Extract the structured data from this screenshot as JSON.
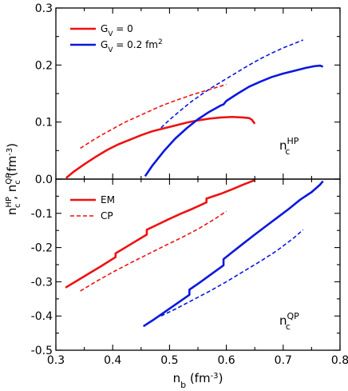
{
  "chart_data": [
    {
      "id": "top",
      "type": "line",
      "xlim": [
        0.3,
        0.8
      ],
      "ylim": [
        0,
        0.3
      ],
      "yticks": [
        "0.0",
        "0.1",
        "0.2",
        "0.3"
      ],
      "legend": {
        "placement": "top-left",
        "entries": [
          {
            "label": "G",
            "sub": "V",
            "rest": " = 0",
            "color": "#ee1111",
            "dash": "solid"
          },
          {
            "label": "G",
            "sub": "V",
            "rest": " = 0.2 fm",
            "sup": "2",
            "color": "#0a18dd",
            "dash": "solid"
          }
        ]
      },
      "annotation": {
        "base": "n",
        "sub": "c",
        "sup": "HP"
      },
      "series": [
        {
          "name": "G_V = 0, EM",
          "color": "#ee1111",
          "dash": "solid",
          "x": [
            0.318,
            0.33,
            0.35,
            0.37,
            0.39,
            0.41,
            0.43,
            0.45,
            0.47,
            0.49,
            0.51,
            0.53,
            0.55,
            0.57,
            0.59,
            0.61,
            0.63,
            0.64,
            0.645,
            0.65
          ],
          "y": [
            0.002,
            0.012,
            0.026,
            0.039,
            0.051,
            0.061,
            0.069,
            0.077,
            0.084,
            0.089,
            0.094,
            0.099,
            0.103,
            0.106,
            0.108,
            0.109,
            0.108,
            0.107,
            0.104,
            0.097
          ]
        },
        {
          "name": "G_V = 0, CP",
          "color": "#ee1111",
          "dash": "dashed",
          "x": [
            0.343,
            0.36,
            0.38,
            0.4,
            0.42,
            0.44,
            0.46,
            0.48,
            0.5,
            0.52,
            0.54,
            0.56,
            0.58,
            0.6
          ],
          "y": [
            0.054,
            0.065,
            0.077,
            0.088,
            0.099,
            0.108,
            0.117,
            0.126,
            0.134,
            0.141,
            0.148,
            0.154,
            0.16,
            0.166
          ]
        },
        {
          "name": "G_V = 0.2 fm2, EM",
          "color": "#0a18dd",
          "dash": "solid",
          "x": [
            0.457,
            0.47,
            0.49,
            0.51,
            0.53,
            0.55,
            0.57,
            0.59,
            0.595,
            0.6,
            0.62,
            0.64,
            0.66,
            0.68,
            0.7,
            0.72,
            0.74,
            0.755,
            0.765,
            0.77
          ],
          "y": [
            0.005,
            0.024,
            0.049,
            0.071,
            0.089,
            0.105,
            0.118,
            0.129,
            0.131,
            0.137,
            0.15,
            0.162,
            0.171,
            0.179,
            0.185,
            0.19,
            0.195,
            0.198,
            0.199,
            0.197
          ]
        },
        {
          "name": "G_V = 0.2 fm2, CP",
          "color": "#0a18dd",
          "dash": "dashed",
          "x": [
            0.485,
            0.5,
            0.52,
            0.54,
            0.56,
            0.58,
            0.6,
            0.62,
            0.64,
            0.66,
            0.68,
            0.7,
            0.72,
            0.735
          ],
          "y": [
            0.09,
            0.104,
            0.121,
            0.137,
            0.151,
            0.164,
            0.176,
            0.188,
            0.2,
            0.211,
            0.221,
            0.23,
            0.238,
            0.244
          ]
        }
      ]
    },
    {
      "id": "bottom",
      "type": "line",
      "xlim": [
        0.3,
        0.8
      ],
      "ylim": [
        -0.5,
        0
      ],
      "xticks": [
        "0.3",
        "0.4",
        "0.5",
        "0.6",
        "0.7",
        "0.8"
      ],
      "yticks": [
        "-0.5",
        "-0.4",
        "-0.3",
        "-0.2",
        "-0.1"
      ],
      "xlabel": {
        "base": "n",
        "sub": "b",
        "rest": " (fm",
        "sup": "-3",
        "end": ")"
      },
      "legend": {
        "placement": "top-left",
        "entries": [
          {
            "label": "EM",
            "color": "#ee1111",
            "dash": "solid"
          },
          {
            "label": "CP",
            "color": "#ee1111",
            "dash": "dashed"
          }
        ]
      },
      "annotation": {
        "base": "n",
        "sub": "c",
        "sup": "QP"
      },
      "series": [
        {
          "name": "G_V = 0, EM",
          "color": "#ee1111",
          "dash": "solid",
          "x": [
            0.317,
            0.34,
            0.36,
            0.38,
            0.405,
            0.405,
            0.43,
            0.45,
            0.46,
            0.46,
            0.48,
            0.5,
            0.52,
            0.54,
            0.565,
            0.565,
            0.59,
            0.61,
            0.63,
            0.65
          ],
          "y": [
            -0.317,
            -0.294,
            -0.274,
            -0.254,
            -0.228,
            -0.217,
            -0.192,
            -0.172,
            -0.162,
            -0.148,
            -0.132,
            -0.116,
            -0.101,
            -0.087,
            -0.068,
            -0.057,
            -0.043,
            -0.03,
            -0.016,
            -0.003
          ]
        },
        {
          "name": "G_V = 0, CP",
          "color": "#ee1111",
          "dash": "dashed",
          "x": [
            0.343,
            0.37,
            0.4,
            0.43,
            0.46,
            0.49,
            0.52,
            0.55,
            0.58,
            0.6
          ],
          "y": [
            -0.327,
            -0.3,
            -0.272,
            -0.246,
            -0.221,
            -0.196,
            -0.172,
            -0.146,
            -0.116,
            -0.094
          ]
        },
        {
          "name": "G_V = 0.2 fm2, EM",
          "color": "#0a18dd",
          "dash": "solid",
          "x": [
            0.454,
            0.47,
            0.49,
            0.51,
            0.535,
            0.535,
            0.55,
            0.57,
            0.595,
            0.595,
            0.61,
            0.63,
            0.65,
            0.67,
            0.69,
            0.71,
            0.73,
            0.75,
            0.765,
            0.77
          ],
          "y": [
            -0.43,
            -0.413,
            -0.39,
            -0.367,
            -0.338,
            -0.323,
            -0.306,
            -0.282,
            -0.252,
            -0.234,
            -0.214,
            -0.188,
            -0.162,
            -0.137,
            -0.112,
            -0.087,
            -0.06,
            -0.038,
            -0.016,
            -0.006
          ]
        },
        {
          "name": "G_V = 0.2 fm2, CP",
          "color": "#0a18dd",
          "dash": "dashed",
          "x": [
            0.485,
            0.51,
            0.54,
            0.57,
            0.6,
            0.63,
            0.66,
            0.69,
            0.72,
            0.735
          ],
          "y": [
            -0.4,
            -0.38,
            -0.354,
            -0.328,
            -0.3,
            -0.27,
            -0.24,
            -0.208,
            -0.17,
            -0.148
          ]
        }
      ]
    }
  ],
  "ylabel": {
    "a": "n",
    "asub": "c",
    "asup": "HP",
    "sep": " , ",
    "b": "n",
    "bsub": "c",
    "bsup": "QP",
    "rest": " (fm",
    "sup": "-3",
    "end": ")"
  }
}
